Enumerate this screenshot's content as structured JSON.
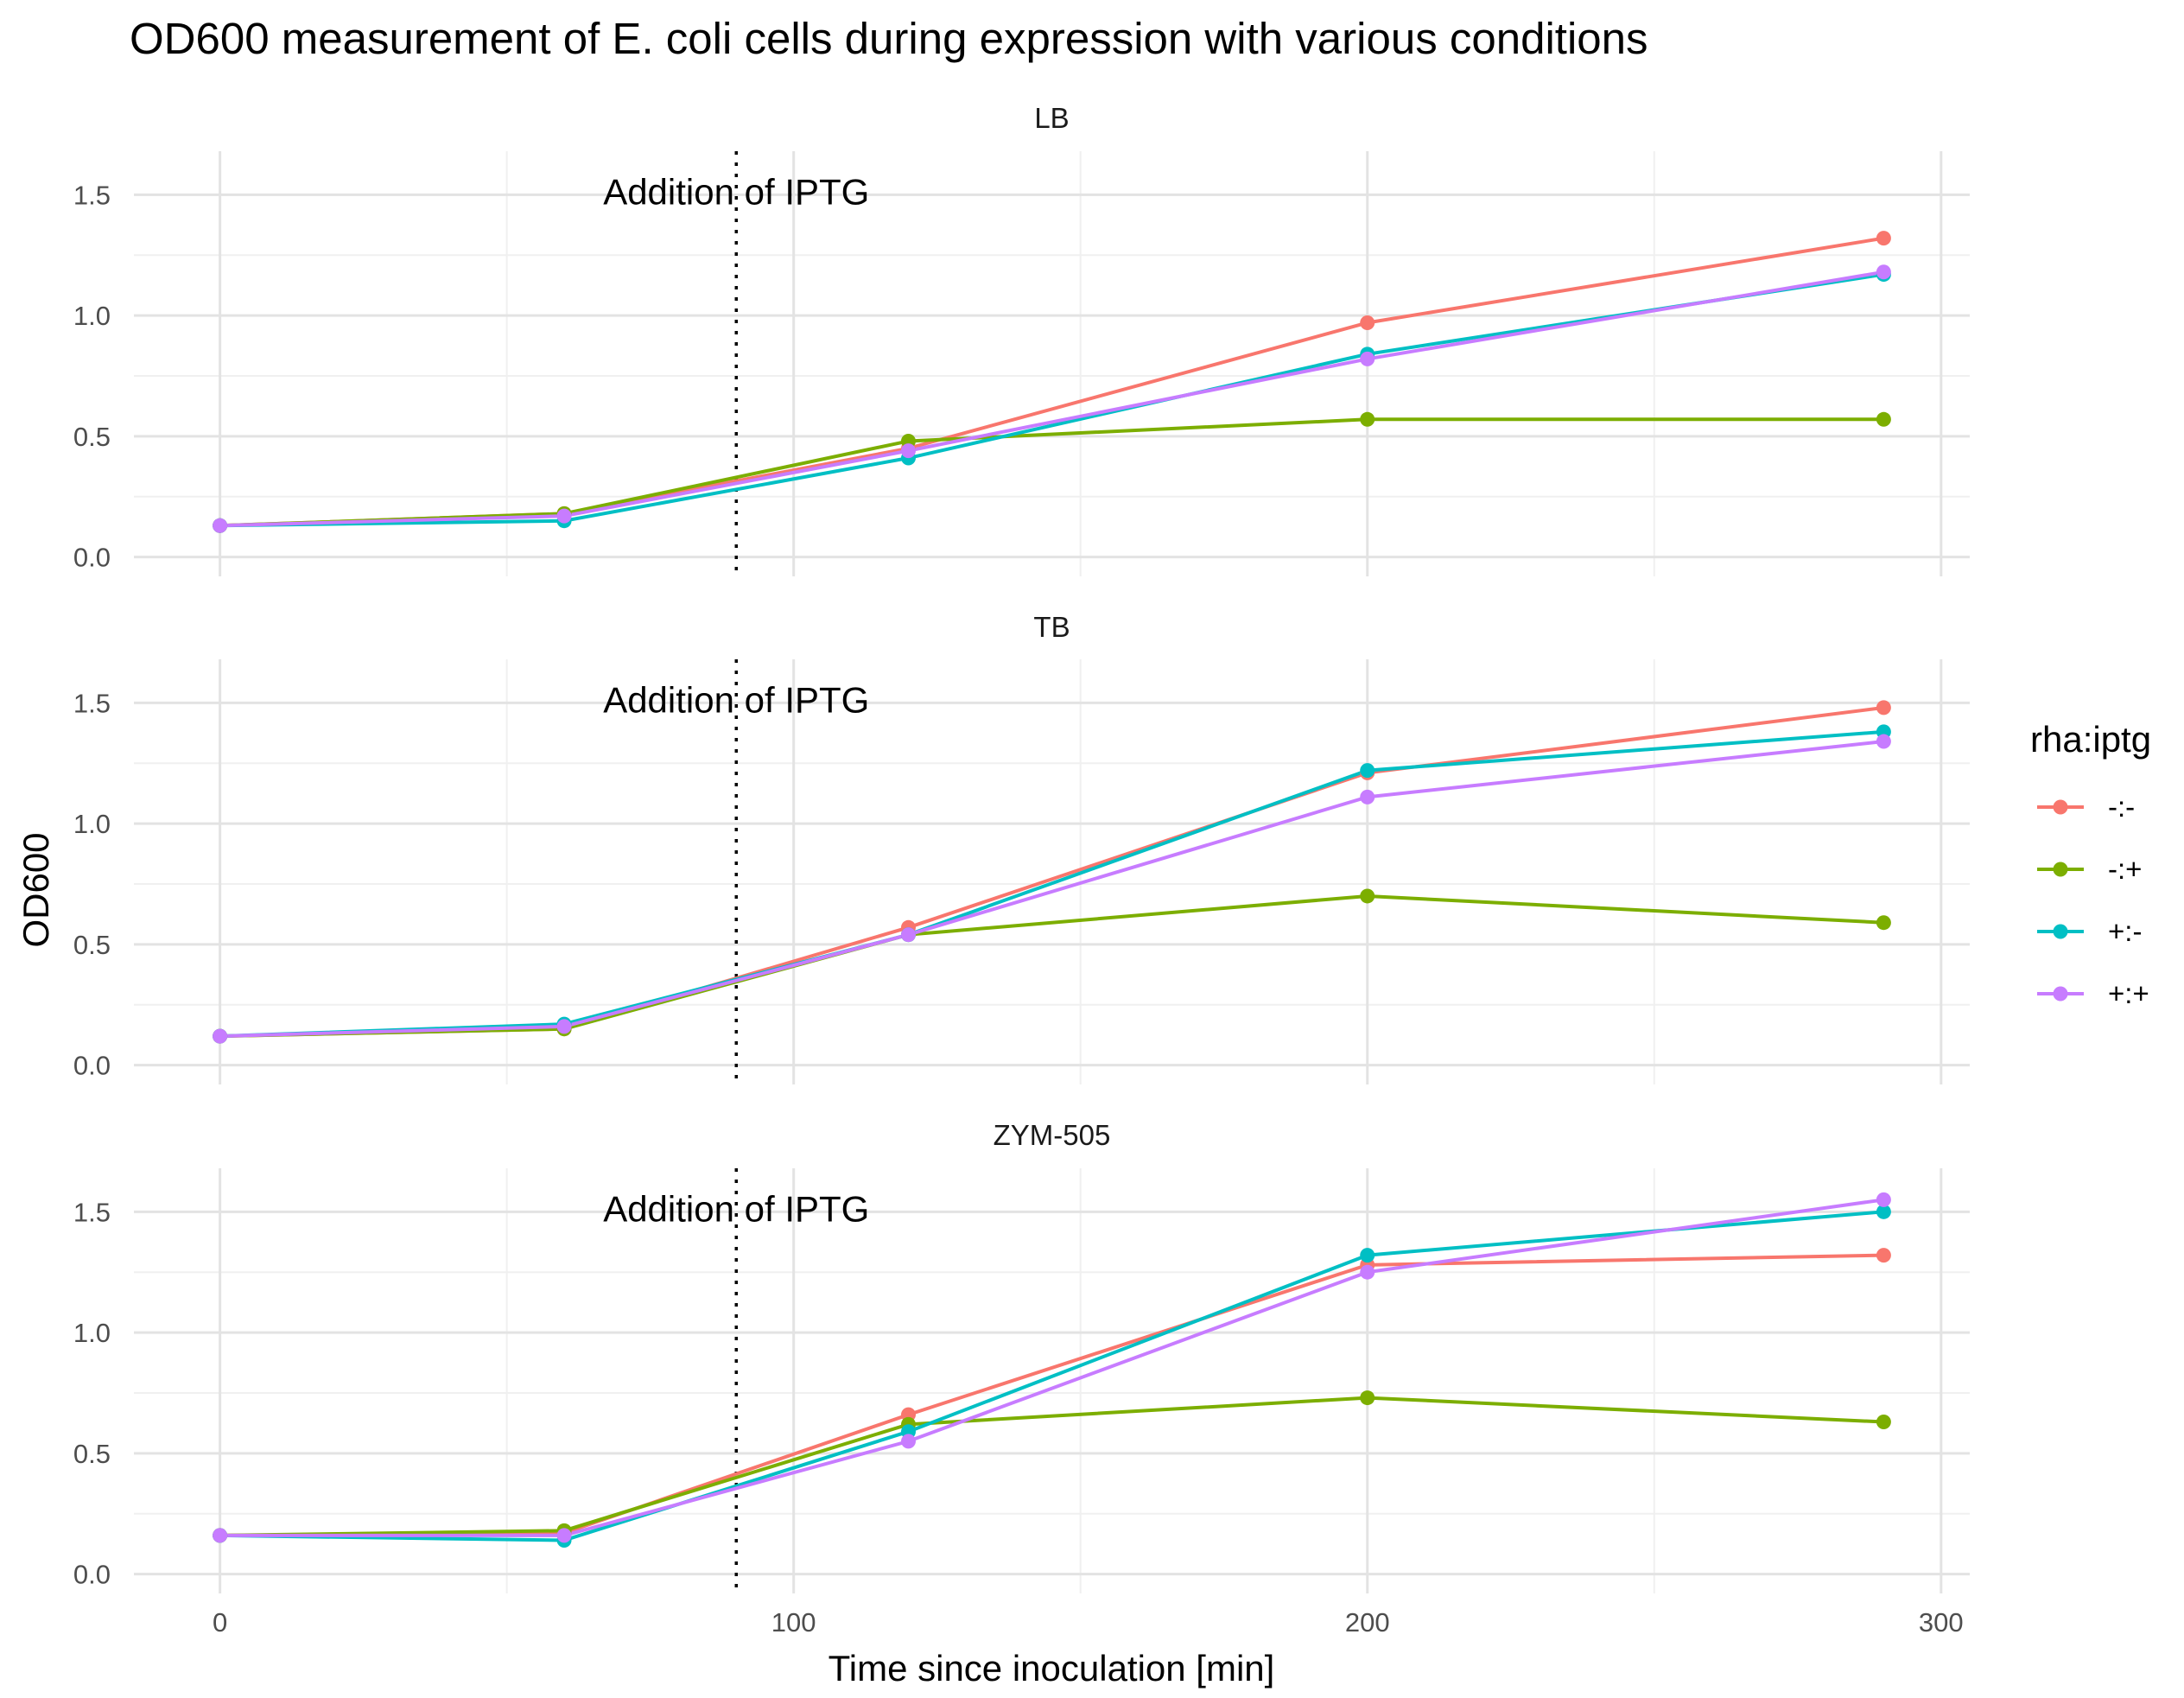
{
  "chart_data": {
    "type": "line",
    "title": "OD600 measurement of E. coli cells during expression with various conditions",
    "xlabel": "Time since inoculation [min]",
    "ylabel": "OD600",
    "xlim": [
      -15,
      305
    ],
    "ylim": [
      -0.08,
      1.68
    ],
    "x_ticks": [
      0,
      100,
      200,
      300
    ],
    "x_tick_labels": [
      "0",
      "100",
      "200",
      "300"
    ],
    "y_ticks": [
      0,
      0.5,
      1,
      1.5
    ],
    "y_tick_labels": [
      "0.0",
      "0.5",
      "1.0",
      "1.5"
    ],
    "grid": true,
    "legend": {
      "title": "rha:iptg",
      "position": "right",
      "entries": [
        "-:-",
        "-:+",
        "+:-",
        "+:+"
      ]
    },
    "vline": {
      "x": 90,
      "style": "dotted",
      "label": "Addition of IPTG"
    },
    "colors": {
      "-:-": "#F8766D",
      "-:+": "#7CAE00",
      "+:-": "#00BFC4",
      "+:+": "#C77CFF"
    },
    "x": [
      0,
      60,
      120,
      200,
      290
    ],
    "panels": [
      {
        "name": "LB",
        "series": [
          {
            "name": "-:-",
            "values": [
              0.13,
              0.18,
              0.45,
              0.97,
              1.32
            ]
          },
          {
            "name": "-:+",
            "values": [
              0.13,
              0.18,
              0.48,
              0.57,
              0.57
            ]
          },
          {
            "name": "+:-",
            "values": [
              0.13,
              0.15,
              0.41,
              0.84,
              1.17
            ]
          },
          {
            "name": "+:+",
            "values": [
              0.13,
              0.17,
              0.44,
              0.82,
              1.18
            ]
          }
        ]
      },
      {
        "name": "TB",
        "series": [
          {
            "name": "-:-",
            "values": [
              0.12,
              0.15,
              0.57,
              1.21,
              1.48
            ]
          },
          {
            "name": "-:+",
            "values": [
              0.12,
              0.15,
              0.54,
              0.7,
              0.59
            ]
          },
          {
            "name": "+:-",
            "values": [
              0.12,
              0.17,
              0.54,
              1.22,
              1.38
            ]
          },
          {
            "name": "+:+",
            "values": [
              0.12,
              0.16,
              0.54,
              1.11,
              1.34
            ]
          }
        ]
      },
      {
        "name": "ZYM-505",
        "series": [
          {
            "name": "-:-",
            "values": [
              0.16,
              0.17,
              0.66,
              1.28,
              1.32
            ]
          },
          {
            "name": "-:+",
            "values": [
              0.16,
              0.18,
              0.62,
              0.73,
              0.63
            ]
          },
          {
            "name": "+:-",
            "values": [
              0.16,
              0.14,
              0.59,
              1.32,
              1.5
            ]
          },
          {
            "name": "+:+",
            "values": [
              0.16,
              0.16,
              0.55,
              1.25,
              1.55
            ]
          }
        ]
      }
    ]
  }
}
